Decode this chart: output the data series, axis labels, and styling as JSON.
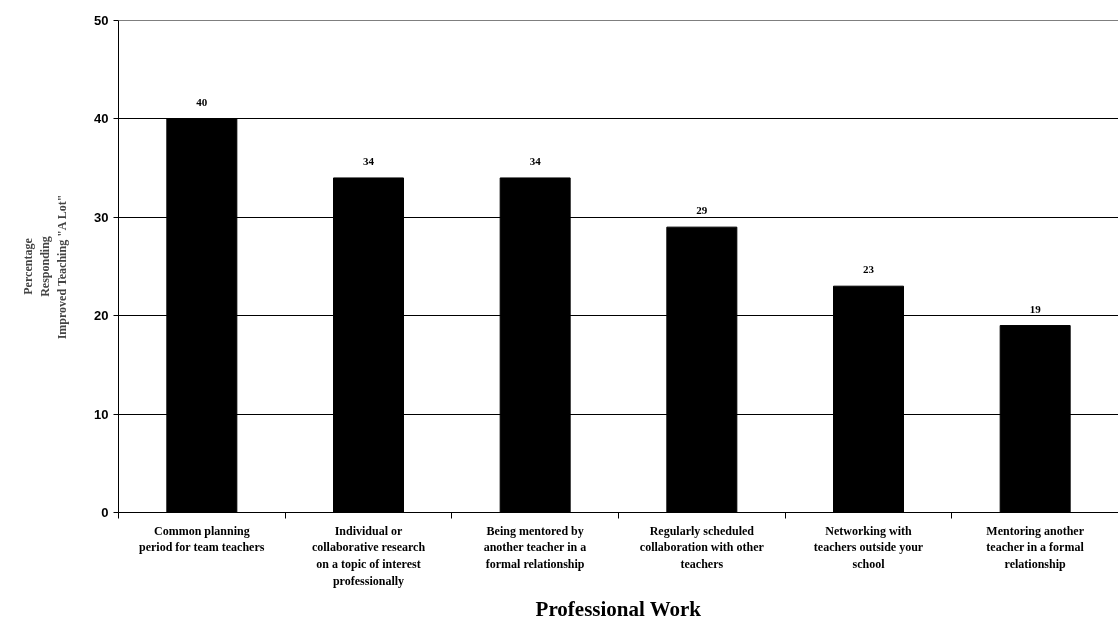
{
  "chart_data": {
    "type": "bar",
    "categories": [
      "Common planning\nperiod for team teachers",
      "Individual or\ncollaborative research\non a topic of interest\nprofessionally",
      "Being mentored by\nanother teacher in a\nformal relationship",
      "Regularly scheduled\ncollaboration with other\nteachers",
      "Networking with\nteachers outside your\nschool",
      "Mentoring another\nteacher in a formal\nrelationship"
    ],
    "values": [
      40,
      34,
      34,
      29,
      23,
      19
    ],
    "color": "#000000",
    "xlabel": "Professional Work",
    "ylabel": "Percentage\nResponding\nImproved Teaching \"A Lot\"",
    "ylim": [
      0,
      50
    ],
    "yticks": [
      0,
      10,
      20,
      30,
      40,
      50
    ],
    "grid": "y",
    "data_labels": true
  }
}
